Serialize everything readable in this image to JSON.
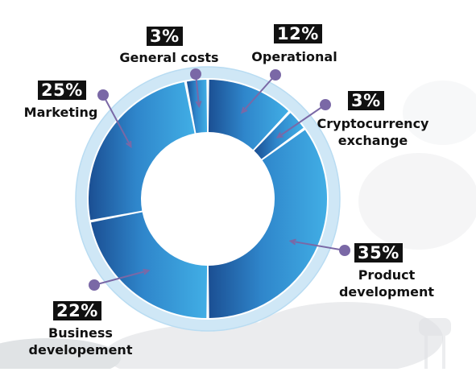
{
  "chart_data": {
    "type": "pie",
    "donut": true,
    "start_angle_deg": 0,
    "direction": "clockwise",
    "categories": [
      "Operational",
      "Cryptocurrency exchange",
      "Product development",
      "Business developement",
      "Marketing",
      "General costs"
    ],
    "values": [
      12,
      3,
      35,
      22,
      25,
      3
    ],
    "labels": [
      {
        "pct": "12%",
        "name_lines": [
          "Operational"
        ]
      },
      {
        "pct": "3%",
        "name_lines": [
          "Cryptocurrency",
          "exchange"
        ]
      },
      {
        "pct": "35%",
        "name_lines": [
          "Product",
          "development"
        ]
      },
      {
        "pct": "22%",
        "name_lines": [
          "Business",
          "developement"
        ]
      },
      {
        "pct": "25%",
        "name_lines": [
          "Marketing"
        ]
      },
      {
        "pct": "3%",
        "name_lines": [
          "General costs"
        ]
      }
    ]
  },
  "colors": {
    "slice_light": "#41aee5",
    "slice_dark": "#1b4f93",
    "outer_ring": "#cfe7f6",
    "leader": "#7a68a6",
    "label_bg": "#111111",
    "label_text": "#ffffff"
  }
}
